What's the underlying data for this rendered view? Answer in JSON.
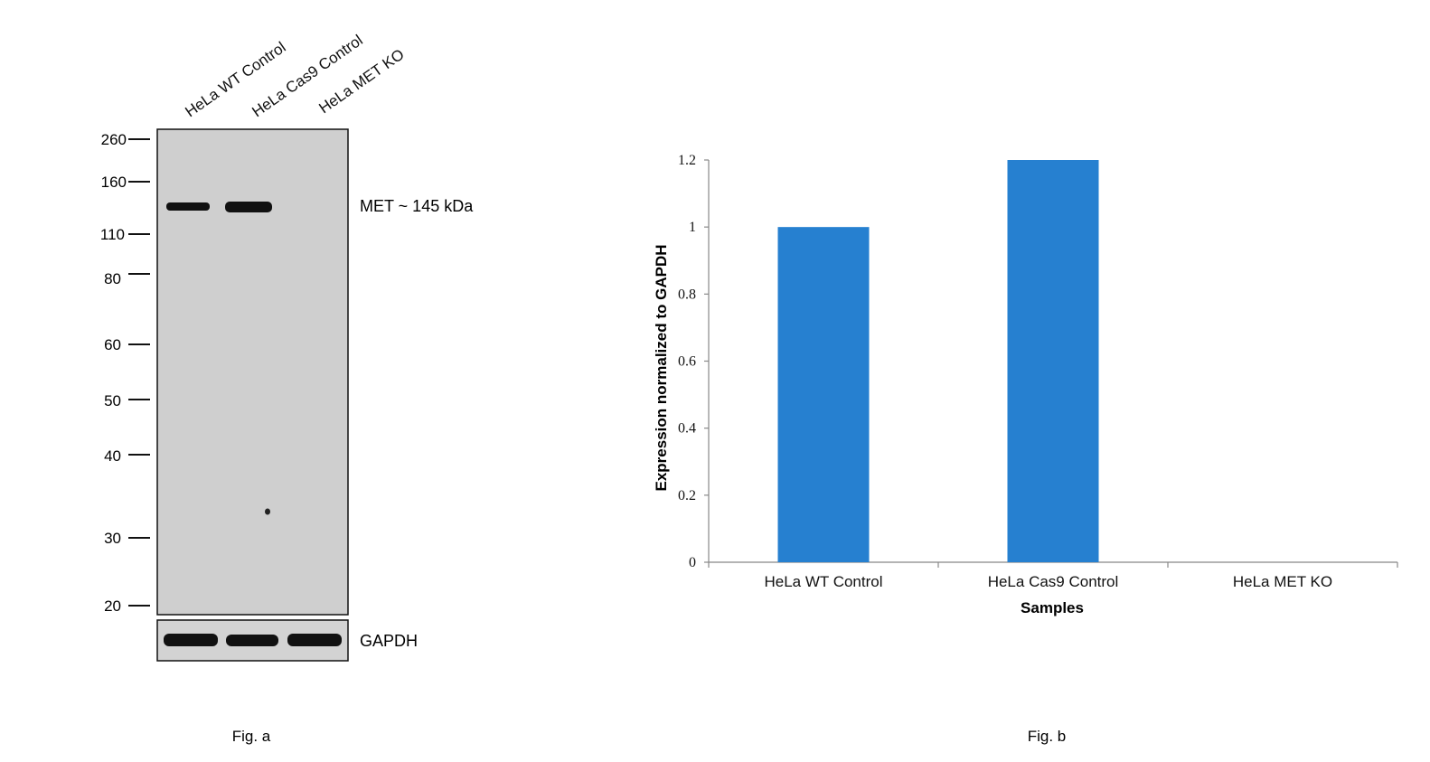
{
  "fig_a": {
    "caption": "Fig. a",
    "lanes": [
      "HeLa WT Control",
      "HeLa Cas9 Control",
      "HeLa MET KO"
    ],
    "markers": [
      "260",
      "160",
      "110",
      "80",
      "60",
      "50",
      "40",
      "30",
      "20"
    ],
    "band_label": "MET ~ 145 kDa",
    "loading_label": "GAPDH",
    "met_band_present": [
      true,
      true,
      false
    ],
    "gapdh_band_present": [
      true,
      true,
      true
    ],
    "colors": {
      "blot_bg": "#cfcfcf",
      "band": "#111111"
    }
  },
  "fig_b": {
    "caption": "Fig. b"
  },
  "chart_data": {
    "type": "bar",
    "categories": [
      "HeLa WT Control",
      "HeLa Cas9 Control",
      "HeLa MET KO"
    ],
    "values": [
      1.0,
      1.2,
      0.0
    ],
    "title": "",
    "xlabel": "Samples",
    "ylabel": "Expression  normalized to GAPDH",
    "ylim": [
      0,
      1.2
    ],
    "yticks": [
      "0",
      "0.2",
      "0.4",
      "0.6",
      "0.8",
      "1",
      "1.2"
    ],
    "grid": false,
    "bar_color": "#2680d0"
  }
}
